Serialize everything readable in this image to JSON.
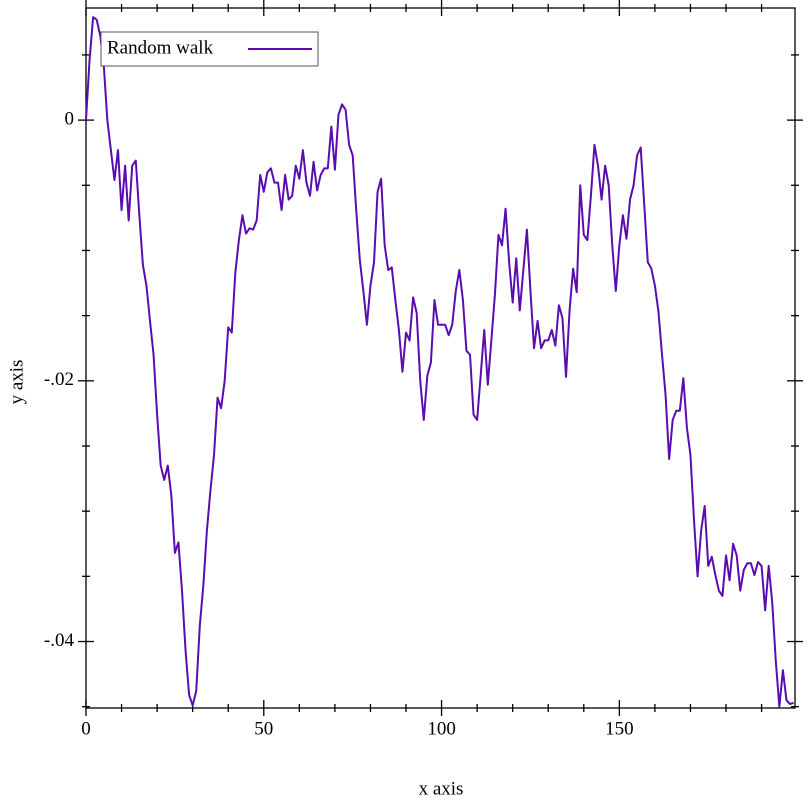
{
  "chart_data": {
    "type": "line",
    "x_label": "x axis",
    "y_label": "y axis",
    "x": [
      0,
      1,
      2,
      3,
      4,
      5,
      6,
      7,
      8,
      9,
      10,
      11,
      12,
      13,
      14,
      15,
      16,
      17,
      18,
      19,
      20,
      21,
      22,
      23,
      24,
      25,
      26,
      27,
      28,
      29,
      30,
      31,
      32,
      33,
      34,
      35,
      36,
      37,
      38,
      39,
      40,
      41,
      42,
      43,
      44,
      45,
      46,
      47,
      48,
      49,
      50,
      51,
      52,
      53,
      54,
      55,
      56,
      57,
      58,
      59,
      60,
      61,
      62,
      63,
      64,
      65,
      66,
      67,
      68,
      69,
      70,
      71,
      72,
      73,
      74,
      75,
      76,
      77,
      78,
      79,
      80,
      81,
      82,
      83,
      84,
      85,
      86,
      87,
      88,
      89,
      90,
      91,
      92,
      93,
      94,
      95,
      96,
      97,
      98,
      99,
      100,
      101,
      102,
      103,
      104,
      105,
      106,
      107,
      108,
      109,
      110,
      111,
      112,
      113,
      114,
      115,
      116,
      117,
      118,
      119,
      120,
      121,
      122,
      123,
      124,
      125,
      126,
      127,
      128,
      129,
      130,
      131,
      132,
      133,
      134,
      135,
      136,
      137,
      138,
      139,
      140,
      141,
      142,
      143,
      144,
      145,
      146,
      147,
      148,
      149,
      150,
      151,
      152,
      153,
      154,
      155,
      156,
      157,
      158,
      159,
      160,
      161,
      162,
      163,
      164,
      165,
      166,
      167,
      168,
      169,
      170,
      171,
      172,
      173,
      174,
      175,
      176,
      177,
      178,
      179,
      180,
      181,
      182,
      183,
      184,
      185,
      186,
      187,
      188,
      189,
      190,
      191,
      192,
      193,
      194,
      195,
      196,
      197,
      198,
      199
    ],
    "series": [
      {
        "name": "Random walk",
        "color": "#5a0cb0",
        "values": [
          0,
          0.0046,
          0.0079,
          0.0077,
          0.0065,
          0.0042,
          0,
          -0.0023,
          -0.0046,
          -0.0023,
          -0.0069,
          -0.0035,
          -0.0077,
          -0.0035,
          -0.0031,
          -0.0073,
          -0.0111,
          -0.0127,
          -0.0154,
          -0.018,
          -0.0226,
          -0.0265,
          -0.0276,
          -0.0265,
          -0.0288,
          -0.0332,
          -0.0324,
          -0.0361,
          -0.0407,
          -0.0441,
          -0.0449,
          -0.0438,
          -0.0388,
          -0.0357,
          -0.0315,
          -0.0284,
          -0.0257,
          -0.0213,
          -0.0221,
          -0.02,
          -0.0159,
          -0.0163,
          -0.0117,
          -0.0092,
          -0.0073,
          -0.0087,
          -0.0083,
          -0.0084,
          -0.0077,
          -0.0042,
          -0.0055,
          -0.004,
          -0.0037,
          -0.0048,
          -0.0048,
          -0.0069,
          -0.0042,
          -0.0061,
          -0.0058,
          -0.0035,
          -0.0045,
          -0.0023,
          -0.0048,
          -0.0058,
          -0.0032,
          -0.0054,
          -0.0042,
          -0.0037,
          -0.0037,
          -0.0005,
          -0.0038,
          0.0004,
          0.0012,
          0.0008,
          -0.0019,
          -0.0027,
          -0.0069,
          -0.0107,
          -0.0131,
          -0.0157,
          -0.0127,
          -0.0109,
          -0.0055,
          -0.0045,
          -0.0096,
          -0.0115,
          -0.0113,
          -0.0138,
          -0.0161,
          -0.0193,
          -0.0163,
          -0.0169,
          -0.0136,
          -0.0148,
          -0.02,
          -0.023,
          -0.0196,
          -0.0186,
          -0.0138,
          -0.0157,
          -0.0157,
          -0.0157,
          -0.0165,
          -0.0157,
          -0.0131,
          -0.0115,
          -0.0138,
          -0.0177,
          -0.018,
          -0.0226,
          -0.023,
          -0.0196,
          -0.0161,
          -0.0203,
          -0.0169,
          -0.0134,
          -0.0088,
          -0.0096,
          -0.0068,
          -0.0109,
          -0.014,
          -0.0106,
          -0.0146,
          -0.0115,
          -0.0084,
          -0.0131,
          -0.0175,
          -0.0154,
          -0.0175,
          -0.0169,
          -0.0169,
          -0.0161,
          -0.0173,
          -0.0142,
          -0.0152,
          -0.0197,
          -0.0146,
          -0.0114,
          -0.0132,
          -0.005,
          -0.0088,
          -0.0092,
          -0.0058,
          -0.0019,
          -0.0035,
          -0.0061,
          -0.0035,
          -0.005,
          -0.0096,
          -0.0131,
          -0.0096,
          -0.0073,
          -0.0091,
          -0.0061,
          -0.005,
          -0.0027,
          -0.0021,
          -0.0065,
          -0.0109,
          -0.0114,
          -0.0127,
          -0.0147,
          -0.018,
          -0.0211,
          -0.026,
          -0.023,
          -0.0223,
          -0.0223,
          -0.0198,
          -0.0236,
          -0.0257,
          -0.0307,
          -0.035,
          -0.0315,
          -0.0296,
          -0.0342,
          -0.0335,
          -0.0349,
          -0.0361,
          -0.0365,
          -0.0334,
          -0.0353,
          -0.0325,
          -0.0334,
          -0.0361,
          -0.0345,
          -0.034,
          -0.034,
          -0.0349,
          -0.0339,
          -0.0342,
          -0.0376,
          -0.0342,
          -0.037,
          -0.0415,
          -0.045,
          -0.0422,
          -0.0445,
          -0.0448,
          -0.0447
        ]
      }
    ],
    "xlim": [
      0,
      199.4
    ],
    "ylim": [
      -0.0451,
      0.0086
    ],
    "xticks": [
      0,
      50,
      100,
      150
    ],
    "yticks": [
      {
        "value": 0,
        "label": "0"
      },
      {
        "value": -0.02,
        "label": "-.02"
      },
      {
        "value": -0.04,
        "label": "-.04"
      }
    ],
    "x_minor_ticks": [
      10,
      20,
      30,
      40,
      60,
      70,
      80,
      90,
      110,
      120,
      130,
      140,
      160,
      170,
      180,
      190
    ],
    "y_minor_ticks": [
      0.005,
      -0.005,
      -0.01,
      -0.015,
      -0.025,
      -0.03,
      -0.035,
      -0.045
    ],
    "legend": "top-left"
  }
}
